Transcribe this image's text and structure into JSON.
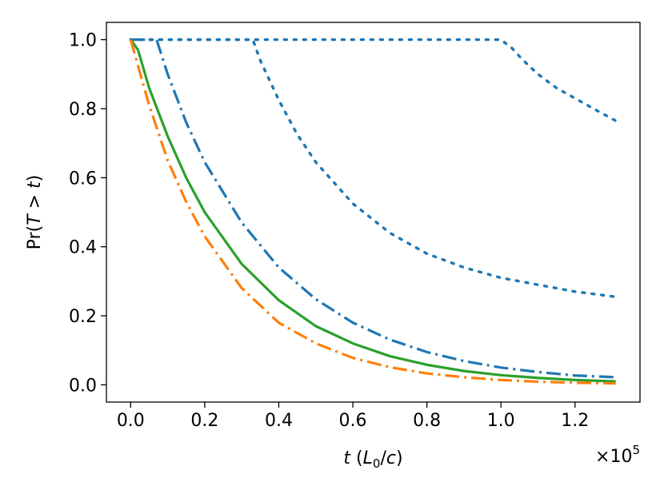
{
  "chart_data": {
    "type": "line",
    "title": "",
    "xlabel": "t (L0/c)",
    "ylabel": "Pr(T > t)",
    "x_multiplier": "×10^5",
    "xlim": [
      -0.0655,
      1.3755
    ],
    "ylim": [
      -0.05,
      1.05
    ],
    "xticks": [
      0.0,
      0.2,
      0.4,
      0.6,
      0.8,
      1.0,
      1.2
    ],
    "xtick_labels": [
      "0.0",
      "0.2",
      "0.4",
      "0.6",
      "0.8",
      "1.0",
      "1.2"
    ],
    "yticks": [
      0.0,
      0.2,
      0.4,
      0.6,
      0.8,
      1.0
    ],
    "ytick_labels": [
      "0.0",
      "0.2",
      "0.4",
      "0.6",
      "0.8",
      "1.0"
    ],
    "grid": false,
    "legend": "none",
    "series": [
      {
        "color": "#1f77b4",
        "linestyle": "dotted",
        "x": [
          0.0,
          1.0,
          1.03,
          1.06,
          1.1,
          1.15,
          1.2,
          1.25,
          1.31
        ],
        "y": [
          1.0,
          1.0,
          0.975,
          0.94,
          0.9,
          0.86,
          0.83,
          0.8,
          0.765
        ]
      },
      {
        "color": "#1f77b4",
        "linestyle": "dotted",
        "x": [
          0.0,
          0.33,
          0.35,
          0.4,
          0.45,
          0.5,
          0.6,
          0.7,
          0.8,
          0.9,
          1.0,
          1.1,
          1.2,
          1.31
        ],
        "y": [
          1.0,
          1.0,
          0.94,
          0.825,
          0.725,
          0.645,
          0.525,
          0.44,
          0.38,
          0.34,
          0.31,
          0.29,
          0.27,
          0.255
        ]
      },
      {
        "color": "#1f77b4",
        "linestyle": "dashdot",
        "x": [
          0.0,
          0.07,
          0.1,
          0.15,
          0.2,
          0.3,
          0.4,
          0.5,
          0.6,
          0.7,
          0.8,
          0.9,
          1.0,
          1.1,
          1.2,
          1.31
        ],
        "y": [
          1.0,
          1.0,
          0.9,
          0.76,
          0.645,
          0.47,
          0.34,
          0.248,
          0.18,
          0.131,
          0.095,
          0.069,
          0.05,
          0.037,
          0.027,
          0.022
        ]
      },
      {
        "color": "#2ca02c",
        "linestyle": "solid",
        "x": [
          0.0,
          0.02,
          0.05,
          0.1,
          0.15,
          0.2,
          0.3,
          0.4,
          0.5,
          0.6,
          0.7,
          0.8,
          0.9,
          1.0,
          1.1,
          1.2,
          1.31
        ],
        "y": [
          1.0,
          0.97,
          0.86,
          0.72,
          0.6,
          0.5,
          0.35,
          0.245,
          0.17,
          0.12,
          0.083,
          0.058,
          0.04,
          0.028,
          0.02,
          0.014,
          0.01
        ]
      },
      {
        "color": "#ff7f0e",
        "linestyle": "dashdot",
        "x": [
          0.0,
          0.05,
          0.1,
          0.15,
          0.2,
          0.3,
          0.4,
          0.5,
          0.6,
          0.7,
          0.8,
          0.9,
          1.0,
          1.1,
          1.2,
          1.31
        ],
        "y": [
          1.0,
          0.81,
          0.65,
          0.53,
          0.43,
          0.28,
          0.18,
          0.12,
          0.078,
          0.051,
          0.033,
          0.022,
          0.014,
          0.009,
          0.006,
          0.004
        ]
      }
    ]
  }
}
